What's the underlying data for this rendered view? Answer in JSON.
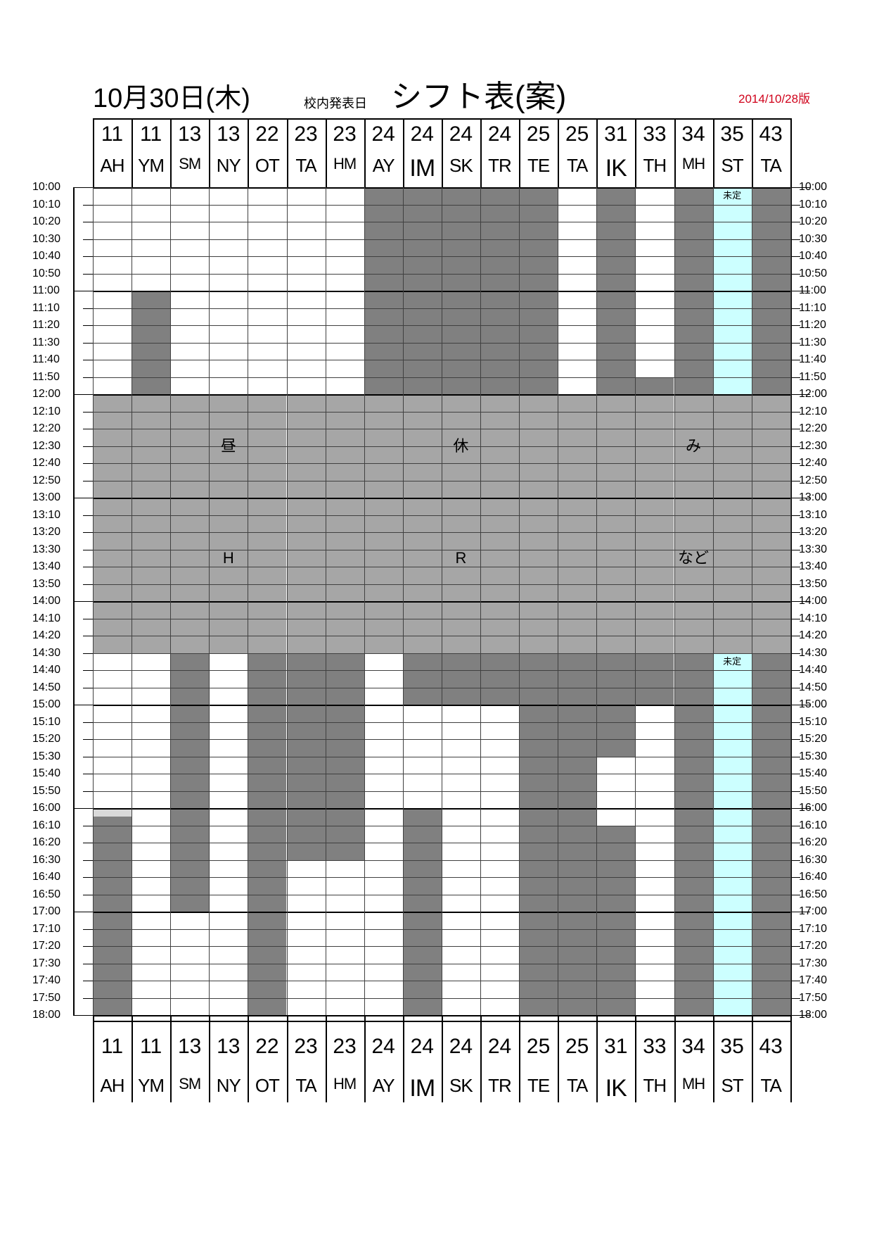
{
  "header": {
    "date": "10月30日(木)",
    "subtitle": "校内発表日",
    "title": "シフト表(案)",
    "version": "2014/10/28版"
  },
  "columns": [
    {
      "num": "11",
      "initials": "AH"
    },
    {
      "num": "11",
      "initials": "YM"
    },
    {
      "num": "13",
      "initials": "SM"
    },
    {
      "num": "13",
      "initials": "NY"
    },
    {
      "num": "22",
      "initials": "OT"
    },
    {
      "num": "23",
      "initials": "TA"
    },
    {
      "num": "23",
      "initials": "HM"
    },
    {
      "num": "24",
      "initials": "AY"
    },
    {
      "num": "24",
      "initials": "IM"
    },
    {
      "num": "24",
      "initials": "SK"
    },
    {
      "num": "24",
      "initials": "TR"
    },
    {
      "num": "25",
      "initials": "TE"
    },
    {
      "num": "25",
      "initials": "TA"
    },
    {
      "num": "31",
      "initials": "IK"
    },
    {
      "num": "33",
      "initials": "TH"
    },
    {
      "num": "34",
      "initials": "MH"
    },
    {
      "num": "35",
      "initials": "ST"
    },
    {
      "num": "43",
      "initials": "TA"
    }
  ],
  "times": [
    "10:00",
    "10:10",
    "10:20",
    "10:30",
    "10:40",
    "10:50",
    "11:00",
    "11:10",
    "11:20",
    "11:30",
    "11:40",
    "11:50",
    "12:00",
    "12:10",
    "12:20",
    "12:30",
    "12:40",
    "12:50",
    "13:00",
    "13:10",
    "13:20",
    "13:30",
    "13:40",
    "13:50",
    "14:00",
    "14:10",
    "14:20",
    "14:30",
    "14:40",
    "14:50",
    "15:00",
    "15:10",
    "15:20",
    "15:30",
    "15:40",
    "15:50",
    "16:00",
    "16:10",
    "16:20",
    "16:30",
    "16:40",
    "16:50",
    "17:00",
    "17:10",
    "17:20",
    "17:30",
    "17:40",
    "17:50",
    "18:00"
  ],
  "break_labels": {
    "lunch": [
      "昼",
      "休",
      "み"
    ],
    "hr": [
      "H",
      "R",
      "など"
    ]
  },
  "undecided_label": "未定",
  "colors": {
    "shift": "#808080",
    "break": "#a6a6a6",
    "undecided": "#ccffff",
    "version": "#d0021b"
  }
}
